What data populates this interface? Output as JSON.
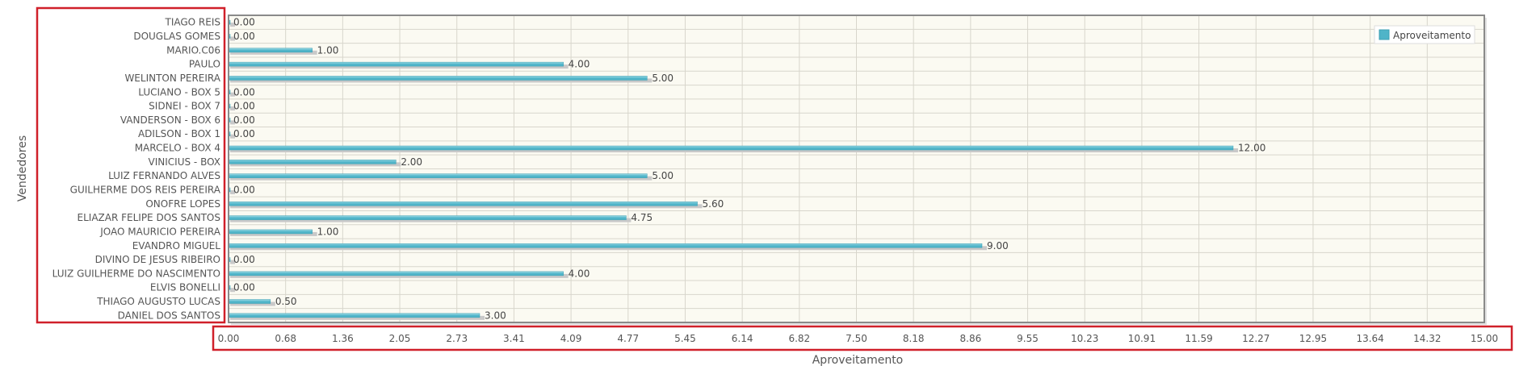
{
  "chart_data": {
    "type": "bar",
    "orientation": "horizontal",
    "title": "",
    "xlabel": "Aproveitamento",
    "ylabel": "Vendedores",
    "xlim": [
      0,
      15
    ],
    "grid": true,
    "legend": {
      "position": "top-right",
      "label": "Aproveitamento"
    },
    "x_ticks": [
      "0.00",
      "0.68",
      "1.36",
      "2.05",
      "2.73",
      "3.41",
      "4.09",
      "4.77",
      "5.45",
      "6.14",
      "6.82",
      "7.50",
      "8.18",
      "8.86",
      "9.55",
      "10.23",
      "10.91",
      "11.59",
      "12.27",
      "12.95",
      "13.64",
      "14.32",
      "15.00"
    ],
    "categories": [
      "TIAGO REIS",
      "DOUGLAS GOMES",
      "MARIO.C06",
      "PAULO",
      "WELINTON PEREIRA",
      "LUCIANO - BOX 5",
      "SIDNEI - BOX 7",
      "VANDERSON - BOX 6",
      "ADILSON - BOX 1",
      "MARCELO - BOX 4",
      "VINICIUS - BOX",
      "LUIZ FERNANDO ALVES",
      "GUILHERME DOS REIS PEREIRA",
      "ONOFRE LOPES",
      "ELIAZAR FELIPE DOS SANTOS",
      "JOAO MAURICIO PEREIRA",
      "EVANDRO MIGUEL",
      "DIVINO DE JESUS RIBEIRO",
      "LUIZ GUILHERME DO NASCIMENTO",
      "ELVIS BONELLI",
      "THIAGO AUGUSTO LUCAS",
      "DANIEL DOS SANTOS"
    ],
    "series": [
      {
        "name": "Aproveitamento",
        "values": [
          0,
          0,
          1,
          4,
          5,
          0,
          0,
          0,
          0,
          12,
          2,
          5,
          0,
          5.6,
          4.75,
          1,
          9,
          0,
          4,
          0,
          0.5,
          3
        ],
        "labels": [
          "0.00",
          "0.00",
          "1.00",
          "4.00",
          "5.00",
          "0.00",
          "0.00",
          "0.00",
          "0.00",
          "12.00",
          "2.00",
          "5.00",
          "0.00",
          "5.60",
          "4.75",
          "1.00",
          "9.00",
          "0.00",
          "4.00",
          "0.00",
          "0.50",
          "3.00"
        ]
      }
    ]
  },
  "colors": {
    "bar": "#4fb4c8",
    "bar_highlight": "#9ddbe6",
    "bar_shadow": "#c9c9c9",
    "plot_bg": "#fbfaf2",
    "grid": "#d8d6cc",
    "plot_border": "#8a8a8a",
    "annotation_border": "#d0202a",
    "text": "#555555"
  }
}
